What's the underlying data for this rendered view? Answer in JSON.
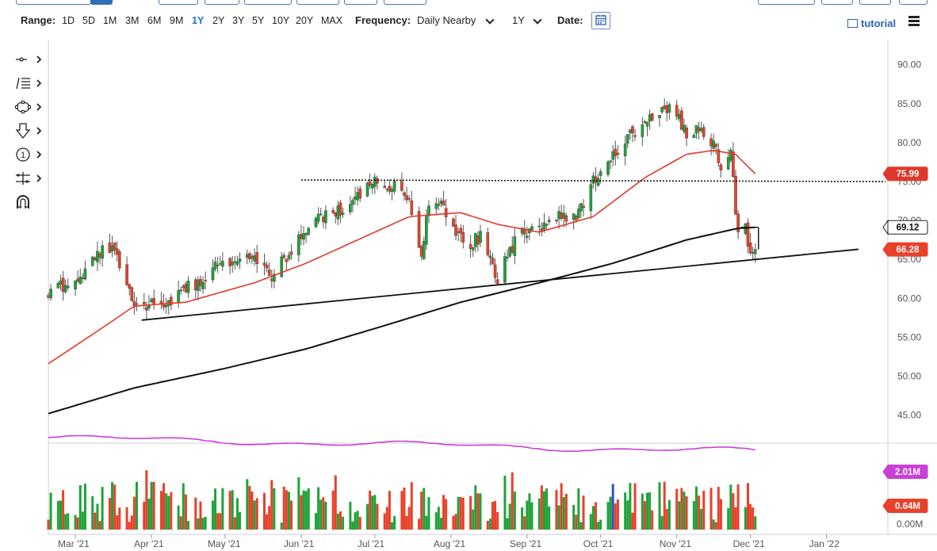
{
  "toolbar": {
    "range_label": "Range:",
    "ranges": [
      "1D",
      "5D",
      "1M",
      "3M",
      "6M",
      "9M",
      "1Y",
      "2Y",
      "3Y",
      "5Y",
      "10Y",
      "20Y",
      "MAX"
    ],
    "active_range": "1Y",
    "frequency_label": "Frequency:",
    "frequency_value": "Daily Nearby",
    "period_value": "1Y",
    "date_label": "Date:",
    "tutorial_label": "tutorial"
  },
  "drawing_tools": [
    "crosshair-tool-icon",
    "fibonacci-tool-icon",
    "shape-tool-icon",
    "arrow-tool-icon",
    "number-marker-icon",
    "measure-tool-icon",
    "magnet-icon"
  ],
  "colors": {
    "up": "#1fa339",
    "down": "#e8412b",
    "ma_short": "#e0392b",
    "ma_long": "#111111",
    "volume_ma": "#c940d6",
    "volume_up": "#1fa339",
    "volume_down": "#e8412b",
    "volume_highlight": "#2f55c9"
  },
  "chart_data": [
    {
      "type": "candlestick",
      "x_ticks": [
        "Mar '21",
        "Apr '21",
        "May '21",
        "Jun '21",
        "Jul '21",
        "Aug '21",
        "Sep '21",
        "Oct '21",
        "Nov '21",
        "Dec '21",
        "Jan '22"
      ],
      "y_ticks": [
        "90.00",
        "85.00",
        "80.00",
        "75.00",
        "70.00",
        "65.00",
        "60.00",
        "55.00",
        "50.00",
        "45.00"
      ],
      "ylim": [
        41.5,
        92
      ],
      "x_start": "2021-02-18",
      "x_end": "2022-01-26",
      "close_path": [
        [
          "2021-02-18",
          60.5
        ],
        [
          "2021-03-04",
          63.0
        ],
        [
          "2021-03-11",
          66.0
        ],
        [
          "2021-03-15",
          66.5
        ],
        [
          "2021-03-22",
          62.5
        ],
        [
          "2021-03-26",
          58.5
        ],
        [
          "2021-04-01",
          59.5
        ],
        [
          "2021-04-08",
          59.5
        ],
        [
          "2021-04-15",
          61.5
        ],
        [
          "2021-04-22",
          62.0
        ],
        [
          "2021-04-29",
          64.5
        ],
        [
          "2021-05-06",
          65.0
        ],
        [
          "2021-05-13",
          65.5
        ],
        [
          "2021-05-20",
          63.0
        ],
        [
          "2021-05-27",
          66.0
        ],
        [
          "2021-06-03",
          68.5
        ],
        [
          "2021-06-10",
          70.5
        ],
        [
          "2021-06-17",
          71.5
        ],
        [
          "2021-06-24",
          73.0
        ],
        [
          "2021-07-01",
          75.0
        ],
        [
          "2021-07-06",
          74.5
        ],
        [
          "2021-07-12",
          74.0
        ],
        [
          "2021-07-16",
          71.5
        ],
        [
          "2021-07-20",
          66.0
        ],
        [
          "2021-07-23",
          72.0
        ],
        [
          "2021-07-28",
          72.5
        ],
        [
          "2021-08-04",
          68.0
        ],
        [
          "2021-08-09",
          67.0
        ],
        [
          "2021-08-13",
          68.0
        ],
        [
          "2021-08-20",
          62.5
        ],
        [
          "2021-08-23",
          65.5
        ],
        [
          "2021-08-30",
          68.5
        ],
        [
          "2021-09-07",
          69.0
        ],
        [
          "2021-09-14",
          70.5
        ],
        [
          "2021-09-21",
          70.5
        ],
        [
          "2021-09-28",
          75.0
        ],
        [
          "2021-10-05",
          78.5
        ],
        [
          "2021-10-12",
          80.5
        ],
        [
          "2021-10-19",
          83.0
        ],
        [
          "2021-10-26",
          84.5
        ],
        [
          "2021-11-01",
          84.0
        ],
        [
          "2021-11-05",
          81.0
        ],
        [
          "2021-11-10",
          81.5
        ],
        [
          "2021-11-16",
          80.0
        ],
        [
          "2021-11-19",
          76.0
        ],
        [
          "2021-11-23",
          78.5
        ],
        [
          "2021-11-26",
          68.0
        ],
        [
          "2021-11-29",
          69.5
        ],
        [
          "2021-12-01",
          65.5
        ],
        [
          "2021-12-03",
          66.28
        ]
      ],
      "last_prices": {
        "ma_short": "75.99",
        "ma_long": "69.12",
        "close": "66.28"
      },
      "ma_short_path": [
        [
          "2021-02-18",
          51.6
        ],
        [
          "2021-03-11",
          56.0
        ],
        [
          "2021-03-25",
          59.0
        ],
        [
          "2021-04-15",
          59.5
        ],
        [
          "2021-05-13",
          62.0
        ],
        [
          "2021-06-03",
          64.5
        ],
        [
          "2021-06-24",
          67.5
        ],
        [
          "2021-07-15",
          70.5
        ],
        [
          "2021-08-05",
          71.0
        ],
        [
          "2021-08-20",
          69.5
        ],
        [
          "2021-09-06",
          68.5
        ],
        [
          "2021-09-28",
          70.5
        ],
        [
          "2021-10-19",
          75.5
        ],
        [
          "2021-11-05",
          78.5
        ],
        [
          "2021-11-16",
          79.0
        ],
        [
          "2021-11-25",
          78.5
        ],
        [
          "2021-12-03",
          75.99
        ]
      ],
      "ma_long_path": [
        [
          "2021-02-18",
          45.2
        ],
        [
          "2021-03-25",
          48.5
        ],
        [
          "2021-05-01",
          51.0
        ],
        [
          "2021-06-03",
          53.5
        ],
        [
          "2021-07-05",
          56.5
        ],
        [
          "2021-08-05",
          59.5
        ],
        [
          "2021-09-06",
          62.0
        ],
        [
          "2021-10-06",
          64.5
        ],
        [
          "2021-11-05",
          67.5
        ],
        [
          "2021-11-26",
          69.0
        ],
        [
          "2021-12-03",
          69.12
        ]
      ],
      "support_trendline": [
        [
          "2021-03-28",
          57.2
        ],
        [
          "2022-01-14",
          66.3
        ]
      ],
      "resistance_line": [
        [
          "2021-06-01",
          75.2
        ],
        [
          "2022-01-25",
          75.0
        ]
      ]
    },
    {
      "type": "bar",
      "panel": "volume",
      "y_ticks": [
        "0.00M"
      ],
      "last_values": {
        "volume_ma": "2.01M",
        "volume": "0.64M"
      },
      "volume_ma_level": 2.01,
      "volume_range": [
        0.35,
        2.05
      ]
    }
  ]
}
